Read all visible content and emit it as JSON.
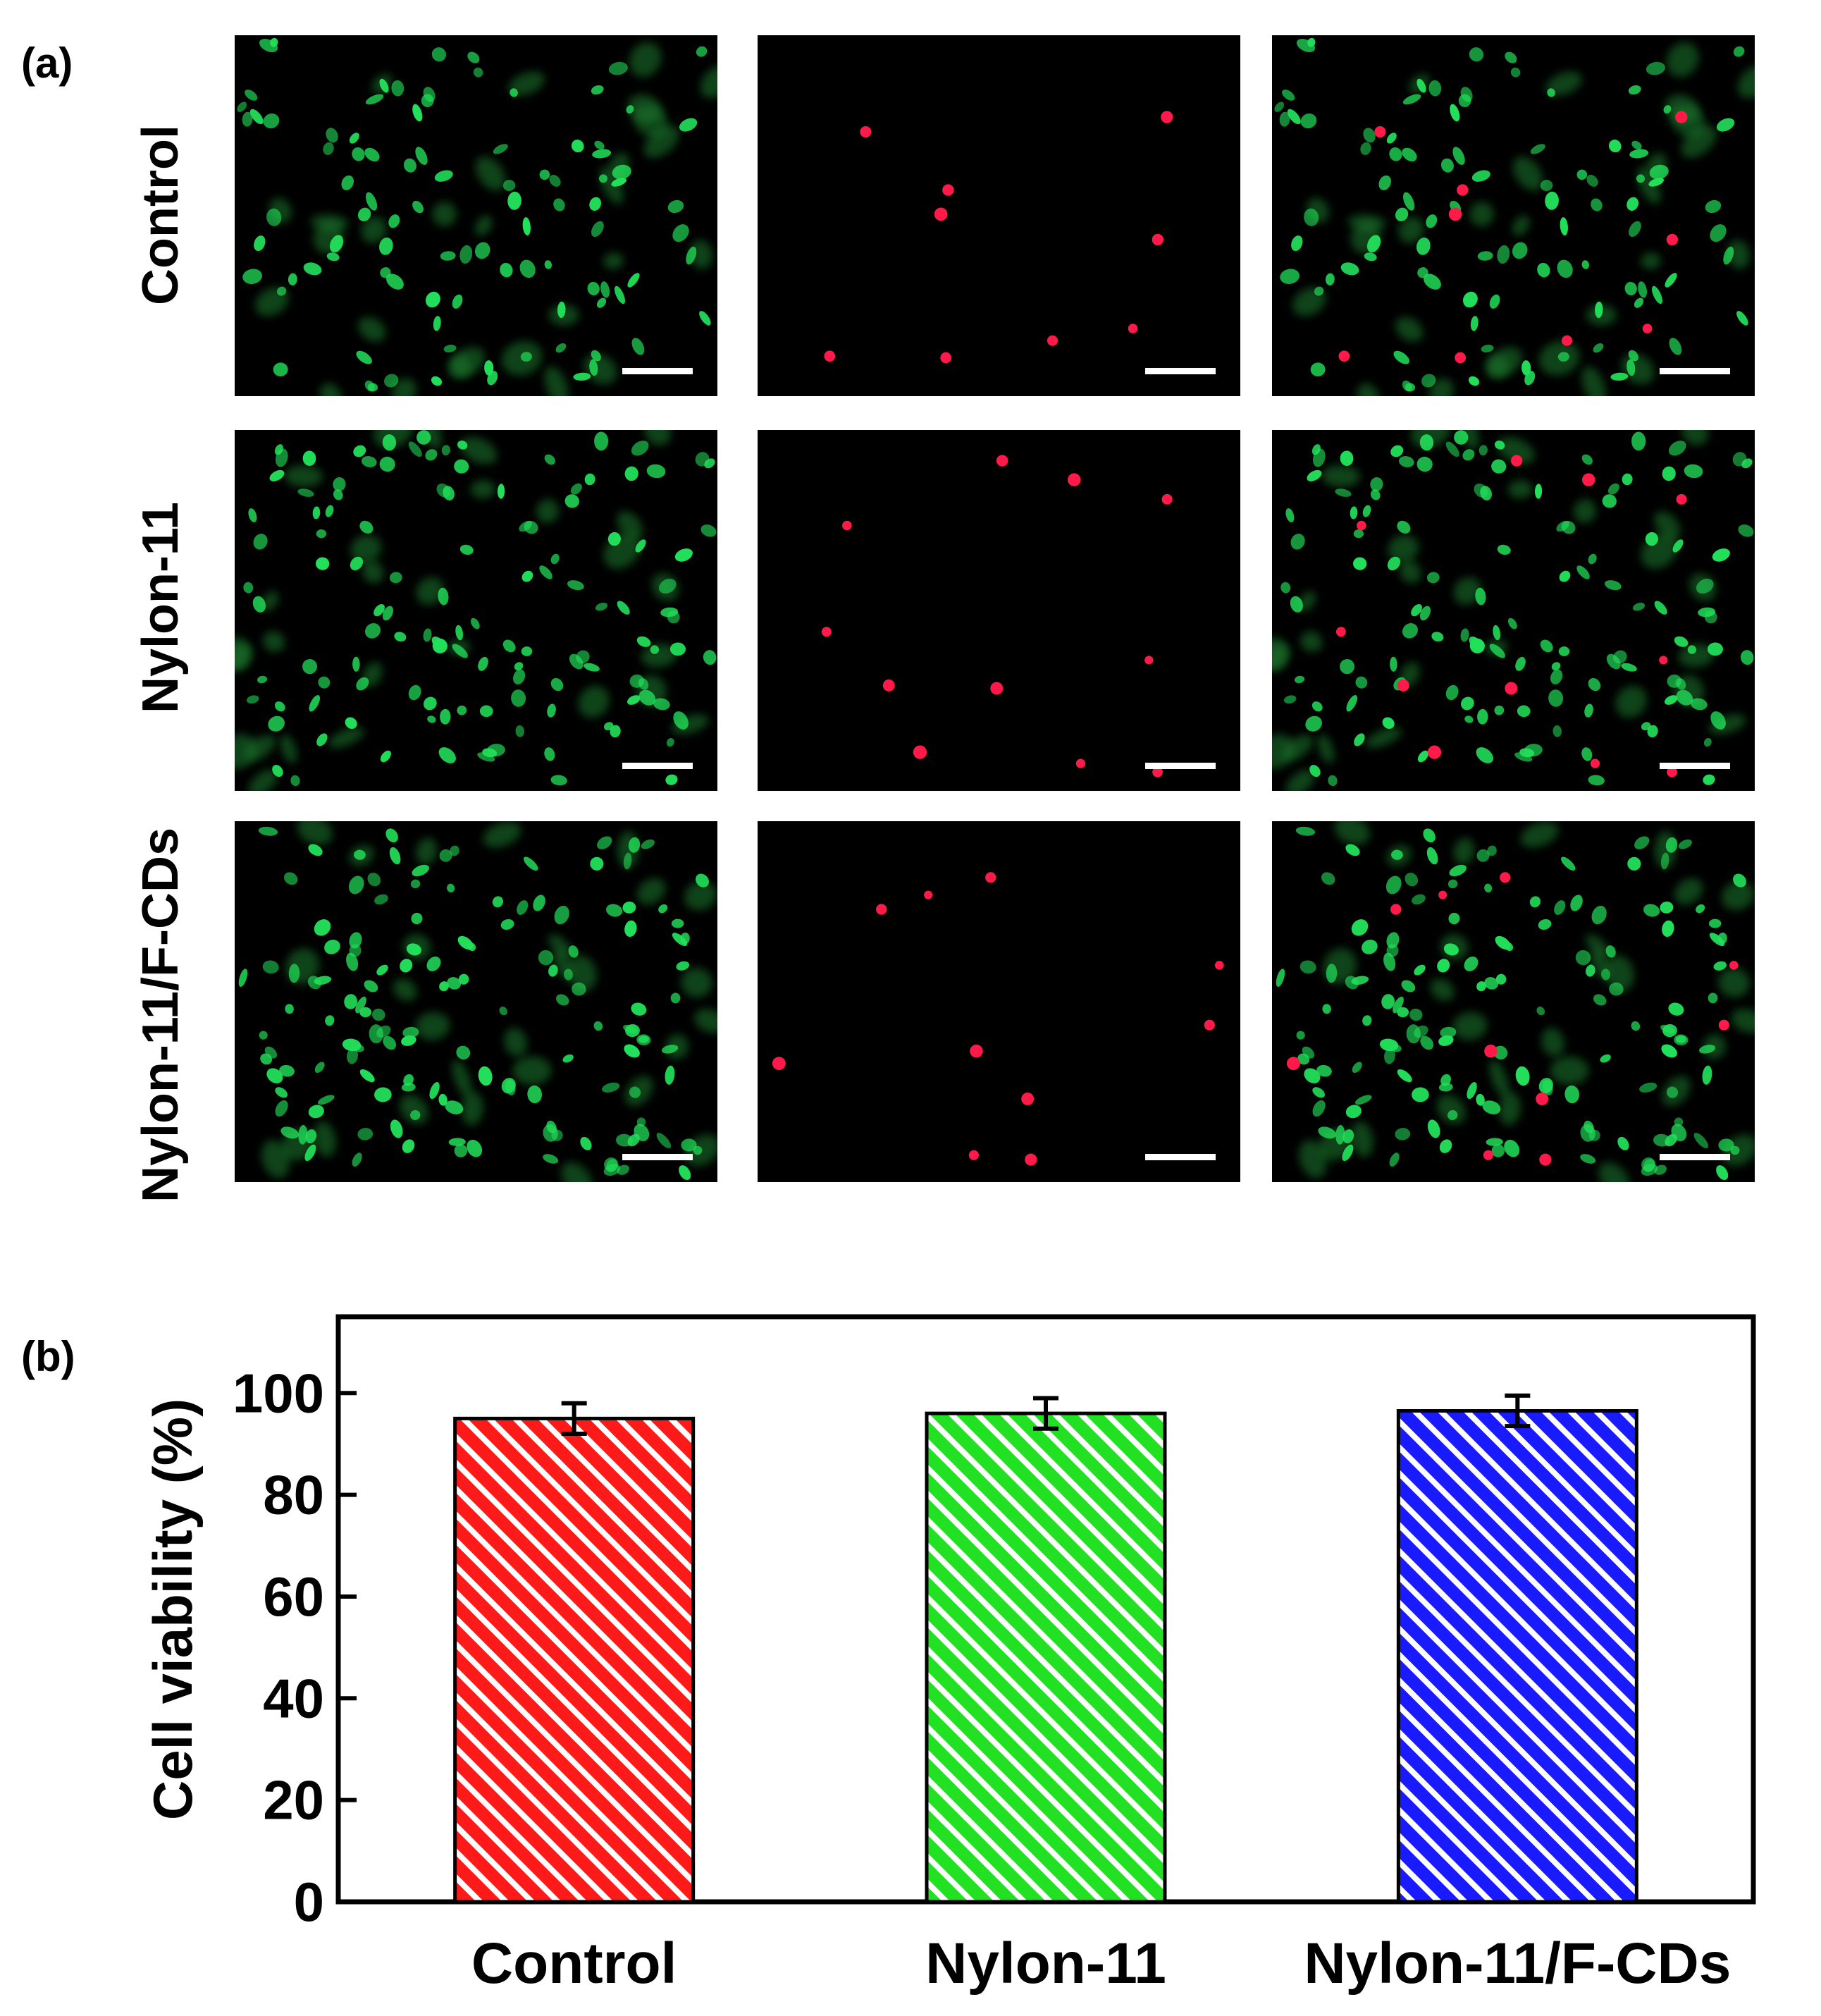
{
  "panel_a": {
    "label": "(a)",
    "rows": [
      {
        "label": "Control",
        "seed": 11,
        "green_cells": 95,
        "red_cells": 9
      },
      {
        "label": "Nylon-11",
        "seed": 23,
        "green_cells": 120,
        "red_cells": 11
      },
      {
        "label": "Nylon-11/F-CDs",
        "seed": 37,
        "green_cells": 140,
        "red_cells": 10
      }
    ],
    "colors": {
      "live": "#22e05a",
      "dead": "#ff1a4a",
      "background": "#000000",
      "scale_bar": "#ffffff"
    }
  },
  "chart_data": {
    "type": "bar",
    "panel_label": "(b)",
    "categories": [
      "Control",
      "Nylon-11",
      "Nylon-11/F-CDs"
    ],
    "values": [
      95,
      96,
      96.5
    ],
    "errors": [
      3,
      3,
      3
    ],
    "ylabel": "Cell viability (%)",
    "xlabel": "",
    "ylim": [
      0,
      115
    ],
    "yticks": [
      0,
      20,
      40,
      60,
      80,
      100
    ],
    "colors": [
      "#ff1a1a",
      "#22e022",
      "#1a1aff"
    ],
    "hatch": "diagonal white stripes"
  }
}
